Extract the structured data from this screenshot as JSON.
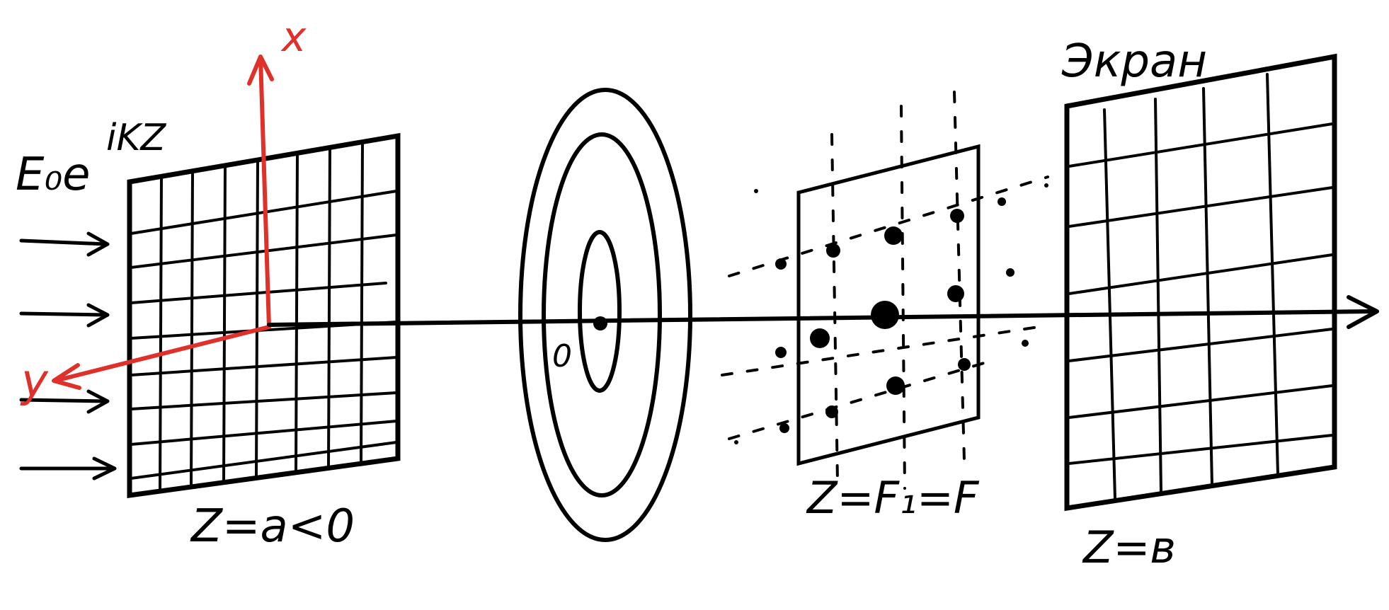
{
  "diagram": {
    "incident_wave_label": "E₀e",
    "incident_wave_exponent": "iKZ",
    "axis_x_label": "x",
    "axis_y_label": "y",
    "input_plane_label": "Z=a<0",
    "lens_origin_label": "0",
    "focal_plane_label": "Z=F₁=F",
    "screen_title": "Экран",
    "screen_plane_label": "Z=в"
  },
  "colors": {
    "ink": "#000000",
    "axes": "#e0302a",
    "background": "#ffffff"
  }
}
